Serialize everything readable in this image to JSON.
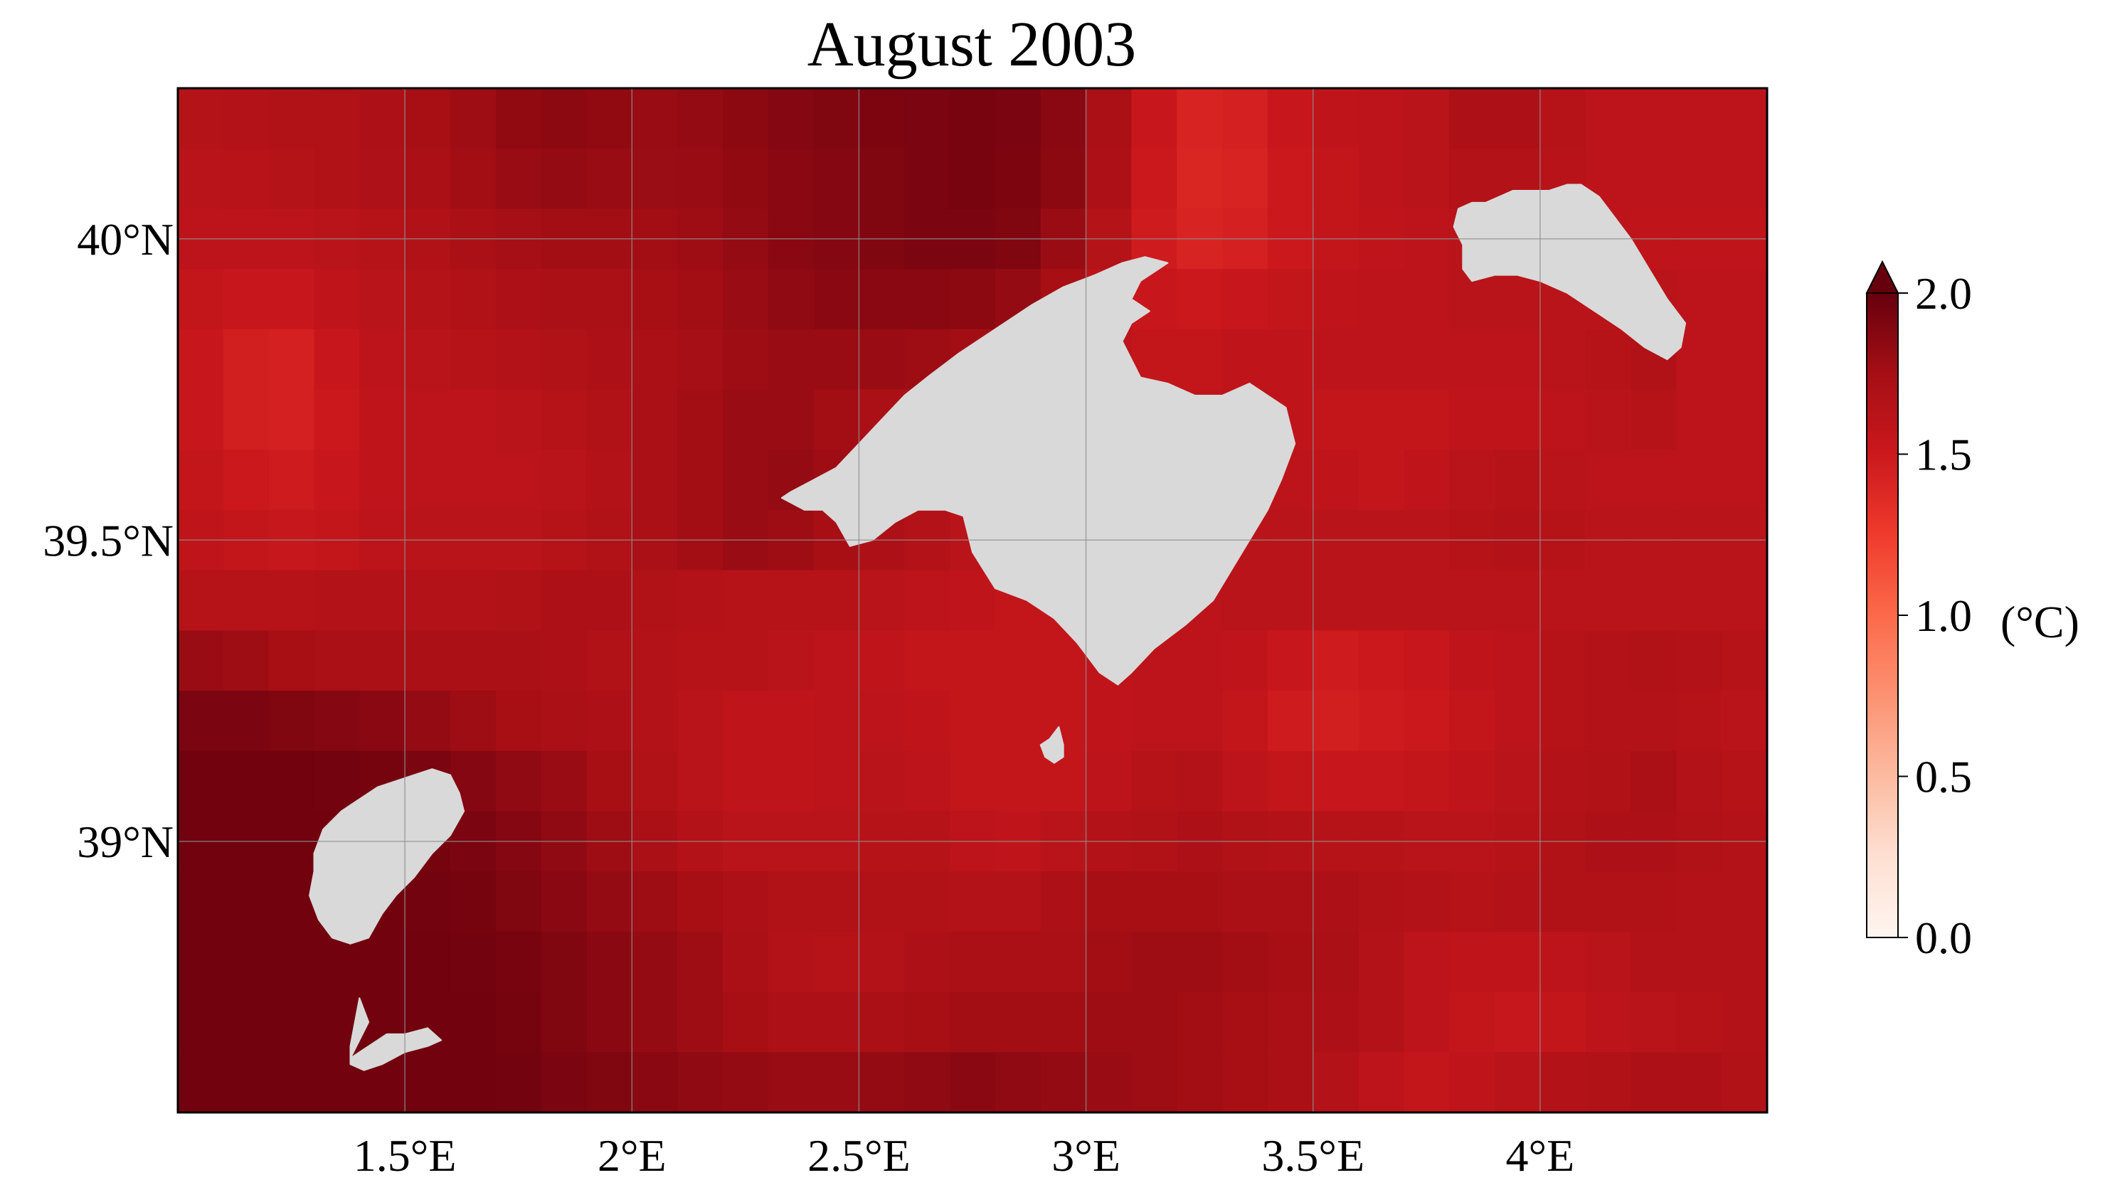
{
  "chart_data": {
    "type": "heatmap",
    "title": "August 2003",
    "x_range": [
      1.0,
      4.5
    ],
    "y_range": [
      38.55,
      40.25
    ],
    "x_ticks": [
      {
        "value": 1.5,
        "label": "1.5°E"
      },
      {
        "value": 2.0,
        "label": "2°E"
      },
      {
        "value": 2.5,
        "label": "2.5°E"
      },
      {
        "value": 3.0,
        "label": "3°E"
      },
      {
        "value": 3.5,
        "label": "3.5°E"
      },
      {
        "value": 4.0,
        "label": "4°E"
      }
    ],
    "y_ticks": [
      {
        "value": 39.0,
        "label": "39°N"
      },
      {
        "value": 39.5,
        "label": "39.5°N"
      },
      {
        "value": 40.0,
        "label": "40°N"
      }
    ],
    "grid": true,
    "colorbar": {
      "label": "(°C)",
      "range": [
        0.0,
        2.0
      ],
      "extend": "max",
      "ticks": [
        {
          "value": 0.0,
          "label": "0.0"
        },
        {
          "value": 0.5,
          "label": "0.5"
        },
        {
          "value": 1.0,
          "label": "1.0"
        },
        {
          "value": 1.5,
          "label": "1.5"
        },
        {
          "value": 2.0,
          "label": "2.0"
        }
      ],
      "colormap": "Reds",
      "colors": [
        "#fff5f0",
        "#fee0d2",
        "#fcbba1",
        "#fc9272",
        "#fb6a4a",
        "#ef3b2c",
        "#cb181d",
        "#a50f15",
        "#67000d"
      ]
    },
    "land_color": "#d9d9d9",
    "grid_cells": {
      "lon_start": 1.0,
      "lat_start": 38.55,
      "cell_size": 0.1,
      "cols": 35,
      "rows": 17,
      "values": [
        [
          1.65,
          1.66,
          1.67,
          1.68,
          1.7,
          1.74,
          1.78,
          1.83,
          1.85,
          1.83,
          1.8,
          1.82,
          1.85,
          1.88,
          1.9,
          1.91,
          1.92,
          1.93,
          1.92,
          1.86,
          1.72,
          1.52,
          1.42,
          1.44,
          1.52,
          1.58,
          1.6,
          1.62,
          1.7,
          1.7,
          1.64,
          1.6,
          1.6,
          1.6,
          1.6
        ],
        [
          1.62,
          1.63,
          1.65,
          1.67,
          1.69,
          1.72,
          1.76,
          1.8,
          1.82,
          1.8,
          1.79,
          1.8,
          1.83,
          1.86,
          1.88,
          1.9,
          1.92,
          1.93,
          1.91,
          1.85,
          1.7,
          1.5,
          1.4,
          1.42,
          1.5,
          1.56,
          1.6,
          1.62,
          1.66,
          1.66,
          1.63,
          1.6,
          1.6,
          1.6,
          1.6
        ],
        [
          1.6,
          1.6,
          1.6,
          1.62,
          1.64,
          1.68,
          1.72,
          1.75,
          1.76,
          1.76,
          1.76,
          1.78,
          1.82,
          1.86,
          1.88,
          1.9,
          1.92,
          1.92,
          1.9,
          1.8,
          1.65,
          1.48,
          1.42,
          1.44,
          1.5,
          1.55,
          1.58,
          1.6,
          1.62,
          1.64,
          1.62,
          1.6,
          1.58,
          1.58,
          1.58
        ],
        [
          1.55,
          1.52,
          1.52,
          1.58,
          1.62,
          1.65,
          1.68,
          1.7,
          1.72,
          1.72,
          1.74,
          1.76,
          1.8,
          1.84,
          1.86,
          1.86,
          1.86,
          1.85,
          1.82,
          1.74,
          1.6,
          1.52,
          1.5,
          1.52,
          1.55,
          1.58,
          1.6,
          1.6,
          1.62,
          1.62,
          1.62,
          1.62,
          1.62,
          1.6,
          1.6
        ],
        [
          1.52,
          1.46,
          1.44,
          1.52,
          1.6,
          1.62,
          1.64,
          1.66,
          1.68,
          1.7,
          1.72,
          1.75,
          1.78,
          1.8,
          1.8,
          1.8,
          1.78,
          1.76,
          1.72,
          1.66,
          1.6,
          1.56,
          1.56,
          1.58,
          1.58,
          1.6,
          1.6,
          1.6,
          1.6,
          1.6,
          1.62,
          1.64,
          1.68,
          1.6,
          1.6
        ],
        [
          1.52,
          1.46,
          1.44,
          1.5,
          1.58,
          1.6,
          1.6,
          1.62,
          1.64,
          1.68,
          1.72,
          1.76,
          1.8,
          1.8,
          1.76,
          1.72,
          1.7,
          1.68,
          1.65,
          1.6,
          1.58,
          1.58,
          1.58,
          1.6,
          1.58,
          1.56,
          1.56,
          1.56,
          1.58,
          1.58,
          1.6,
          1.62,
          1.64,
          1.6,
          1.6
        ],
        [
          1.56,
          1.5,
          1.48,
          1.52,
          1.58,
          1.6,
          1.6,
          1.6,
          1.62,
          1.66,
          1.72,
          1.76,
          1.8,
          1.82,
          1.78,
          1.72,
          1.68,
          1.64,
          1.62,
          1.6,
          1.58,
          1.58,
          1.6,
          1.6,
          1.6,
          1.58,
          1.56,
          1.58,
          1.62,
          1.64,
          1.62,
          1.6,
          1.6,
          1.6,
          1.6
        ],
        [
          1.58,
          1.55,
          1.54,
          1.56,
          1.6,
          1.62,
          1.62,
          1.62,
          1.64,
          1.68,
          1.72,
          1.76,
          1.8,
          1.78,
          1.74,
          1.7,
          1.66,
          1.62,
          1.6,
          1.58,
          1.58,
          1.6,
          1.62,
          1.62,
          1.62,
          1.62,
          1.62,
          1.62,
          1.64,
          1.66,
          1.64,
          1.62,
          1.62,
          1.62,
          1.62
        ],
        [
          1.64,
          1.64,
          1.64,
          1.66,
          1.66,
          1.66,
          1.66,
          1.68,
          1.7,
          1.7,
          1.68,
          1.66,
          1.64,
          1.64,
          1.64,
          1.62,
          1.6,
          1.58,
          1.56,
          1.56,
          1.58,
          1.6,
          1.6,
          1.62,
          1.62,
          1.62,
          1.62,
          1.62,
          1.62,
          1.62,
          1.62,
          1.62,
          1.62,
          1.62,
          1.62
        ],
        [
          1.8,
          1.78,
          1.74,
          1.72,
          1.72,
          1.72,
          1.72,
          1.72,
          1.7,
          1.68,
          1.66,
          1.64,
          1.64,
          1.62,
          1.6,
          1.58,
          1.56,
          1.55,
          1.55,
          1.55,
          1.58,
          1.6,
          1.6,
          1.58,
          1.52,
          1.48,
          1.5,
          1.52,
          1.58,
          1.6,
          1.64,
          1.66,
          1.68,
          1.66,
          1.64
        ],
        [
          1.92,
          1.92,
          1.9,
          1.88,
          1.86,
          1.82,
          1.78,
          1.74,
          1.72,
          1.7,
          1.66,
          1.62,
          1.58,
          1.58,
          1.6,
          1.6,
          1.58,
          1.56,
          1.55,
          1.55,
          1.58,
          1.6,
          1.6,
          1.55,
          1.48,
          1.46,
          1.48,
          1.5,
          1.55,
          1.6,
          1.64,
          1.66,
          1.66,
          1.64,
          1.62
        ],
        [
          1.96,
          1.96,
          1.96,
          1.95,
          1.94,
          1.92,
          1.88,
          1.84,
          1.8,
          1.74,
          1.68,
          1.62,
          1.58,
          1.58,
          1.6,
          1.62,
          1.6,
          1.56,
          1.55,
          1.56,
          1.6,
          1.64,
          1.66,
          1.6,
          1.55,
          1.52,
          1.54,
          1.56,
          1.58,
          1.62,
          1.66,
          1.68,
          1.72,
          1.66,
          1.64
        ],
        [
          1.96,
          1.96,
          1.96,
          1.96,
          1.95,
          1.94,
          1.92,
          1.88,
          1.84,
          1.78,
          1.72,
          1.66,
          1.62,
          1.62,
          1.62,
          1.64,
          1.64,
          1.6,
          1.58,
          1.62,
          1.66,
          1.68,
          1.7,
          1.68,
          1.66,
          1.64,
          1.64,
          1.62,
          1.62,
          1.64,
          1.68,
          1.7,
          1.7,
          1.68,
          1.66
        ],
        [
          1.96,
          1.96,
          1.96,
          1.96,
          1.96,
          1.95,
          1.94,
          1.9,
          1.86,
          1.82,
          1.78,
          1.74,
          1.7,
          1.68,
          1.68,
          1.68,
          1.68,
          1.66,
          1.66,
          1.7,
          1.74,
          1.74,
          1.74,
          1.72,
          1.72,
          1.7,
          1.68,
          1.66,
          1.64,
          1.66,
          1.68,
          1.68,
          1.68,
          1.66,
          1.66
        ],
        [
          1.96,
          1.96,
          1.96,
          1.96,
          1.96,
          1.96,
          1.95,
          1.93,
          1.9,
          1.86,
          1.82,
          1.78,
          1.72,
          1.66,
          1.64,
          1.66,
          1.7,
          1.72,
          1.72,
          1.72,
          1.76,
          1.78,
          1.78,
          1.76,
          1.74,
          1.72,
          1.66,
          1.6,
          1.58,
          1.58,
          1.6,
          1.62,
          1.66,
          1.66,
          1.66
        ],
        [
          1.96,
          1.96,
          1.96,
          1.96,
          1.96,
          1.96,
          1.96,
          1.94,
          1.9,
          1.86,
          1.82,
          1.78,
          1.74,
          1.7,
          1.7,
          1.72,
          1.74,
          1.76,
          1.76,
          1.76,
          1.78,
          1.78,
          1.76,
          1.74,
          1.72,
          1.7,
          1.66,
          1.6,
          1.56,
          1.54,
          1.56,
          1.6,
          1.62,
          1.64,
          1.66
        ],
        [
          1.96,
          1.96,
          1.96,
          1.96,
          1.96,
          1.96,
          1.96,
          1.95,
          1.92,
          1.9,
          1.86,
          1.84,
          1.82,
          1.8,
          1.8,
          1.82,
          1.84,
          1.86,
          1.84,
          1.82,
          1.8,
          1.78,
          1.76,
          1.74,
          1.72,
          1.66,
          1.6,
          1.56,
          1.58,
          1.62,
          1.66,
          1.68,
          1.7,
          1.7,
          1.68
        ]
      ]
    },
    "islands": [
      {
        "name": "Mallorca",
        "outline": [
          [
            2.35,
            39.58
          ],
          [
            2.4,
            39.6
          ],
          [
            2.45,
            39.62
          ],
          [
            2.5,
            39.66
          ],
          [
            2.55,
            39.7
          ],
          [
            2.6,
            39.74
          ],
          [
            2.65,
            39.77
          ],
          [
            2.72,
            39.81
          ],
          [
            2.8,
            39.85
          ],
          [
            2.88,
            39.89
          ],
          [
            2.95,
            39.92
          ],
          [
            3.02,
            39.94
          ],
          [
            3.08,
            39.96
          ],
          [
            3.13,
            39.97
          ],
          [
            3.18,
            39.96
          ],
          [
            3.12,
            39.93
          ],
          [
            3.1,
            39.9
          ],
          [
            3.14,
            39.88
          ],
          [
            3.1,
            39.86
          ],
          [
            3.08,
            39.83
          ],
          [
            3.1,
            39.8
          ],
          [
            3.12,
            39.77
          ],
          [
            3.18,
            39.76
          ],
          [
            3.24,
            39.74
          ],
          [
            3.3,
            39.74
          ],
          [
            3.36,
            39.76
          ],
          [
            3.44,
            39.72
          ],
          [
            3.46,
            39.66
          ],
          [
            3.43,
            39.6
          ],
          [
            3.4,
            39.55
          ],
          [
            3.36,
            39.5
          ],
          [
            3.32,
            39.45
          ],
          [
            3.28,
            39.4
          ],
          [
            3.22,
            39.36
          ],
          [
            3.15,
            39.32
          ],
          [
            3.1,
            39.28
          ],
          [
            3.07,
            39.26
          ],
          [
            3.03,
            39.28
          ],
          [
            2.98,
            39.33
          ],
          [
            2.93,
            39.37
          ],
          [
            2.87,
            39.4
          ],
          [
            2.8,
            39.42
          ],
          [
            2.75,
            39.48
          ],
          [
            2.73,
            39.54
          ],
          [
            2.69,
            39.55
          ],
          [
            2.63,
            39.55
          ],
          [
            2.58,
            39.53
          ],
          [
            2.53,
            39.5
          ],
          [
            2.48,
            39.49
          ],
          [
            2.45,
            39.53
          ],
          [
            2.42,
            39.55
          ],
          [
            2.38,
            39.55
          ],
          [
            2.33,
            39.57
          ]
        ]
      },
      {
        "name": "Menorca",
        "outline": [
          [
            3.82,
            40.05
          ],
          [
            3.85,
            40.06
          ],
          [
            3.88,
            40.06
          ],
          [
            3.91,
            40.07
          ],
          [
            3.94,
            40.08
          ],
          [
            3.98,
            40.08
          ],
          [
            4.02,
            40.08
          ],
          [
            4.06,
            40.09
          ],
          [
            4.09,
            40.09
          ],
          [
            4.13,
            40.07
          ],
          [
            4.16,
            40.04
          ],
          [
            4.2,
            40.0
          ],
          [
            4.24,
            39.95
          ],
          [
            4.28,
            39.9
          ],
          [
            4.32,
            39.86
          ],
          [
            4.31,
            39.82
          ],
          [
            4.28,
            39.8
          ],
          [
            4.23,
            39.82
          ],
          [
            4.18,
            39.85
          ],
          [
            4.12,
            39.88
          ],
          [
            4.06,
            39.91
          ],
          [
            4.0,
            39.93
          ],
          [
            3.95,
            39.94
          ],
          [
            3.9,
            39.94
          ],
          [
            3.85,
            39.93
          ],
          [
            3.83,
            39.95
          ],
          [
            3.83,
            39.99
          ],
          [
            3.81,
            40.02
          ]
        ]
      },
      {
        "name": "Ibiza",
        "outline": [
          [
            1.3,
            38.98
          ],
          [
            1.32,
            39.02
          ],
          [
            1.36,
            39.05
          ],
          [
            1.4,
            39.07
          ],
          [
            1.44,
            39.09
          ],
          [
            1.48,
            39.1
          ],
          [
            1.52,
            39.11
          ],
          [
            1.56,
            39.12
          ],
          [
            1.6,
            39.11
          ],
          [
            1.62,
            39.08
          ],
          [
            1.63,
            39.05
          ],
          [
            1.6,
            39.01
          ],
          [
            1.56,
            38.98
          ],
          [
            1.52,
            38.94
          ],
          [
            1.48,
            38.91
          ],
          [
            1.45,
            38.88
          ],
          [
            1.42,
            38.84
          ],
          [
            1.38,
            38.83
          ],
          [
            1.34,
            38.84
          ],
          [
            1.31,
            38.87
          ],
          [
            1.29,
            38.91
          ],
          [
            1.3,
            38.95
          ]
        ]
      },
      {
        "name": "Formentera",
        "outline": [
          [
            1.4,
            38.74
          ],
          [
            1.42,
            38.7
          ],
          [
            1.4,
            38.67
          ],
          [
            1.38,
            38.64
          ],
          [
            1.42,
            38.66
          ],
          [
            1.46,
            38.68
          ],
          [
            1.5,
            38.68
          ],
          [
            1.55,
            38.69
          ],
          [
            1.58,
            38.67
          ],
          [
            1.55,
            38.66
          ],
          [
            1.5,
            38.65
          ],
          [
            1.45,
            38.63
          ],
          [
            1.41,
            38.62
          ],
          [
            1.38,
            38.63
          ],
          [
            1.38,
            38.66
          ],
          [
            1.39,
            38.7
          ]
        ]
      },
      {
        "name": "Cabrera",
        "outline": [
          [
            2.9,
            39.16
          ],
          [
            2.92,
            39.17
          ],
          [
            2.94,
            39.19
          ],
          [
            2.95,
            39.16
          ],
          [
            2.95,
            39.14
          ],
          [
            2.93,
            39.13
          ],
          [
            2.91,
            39.14
          ]
        ]
      }
    ]
  }
}
